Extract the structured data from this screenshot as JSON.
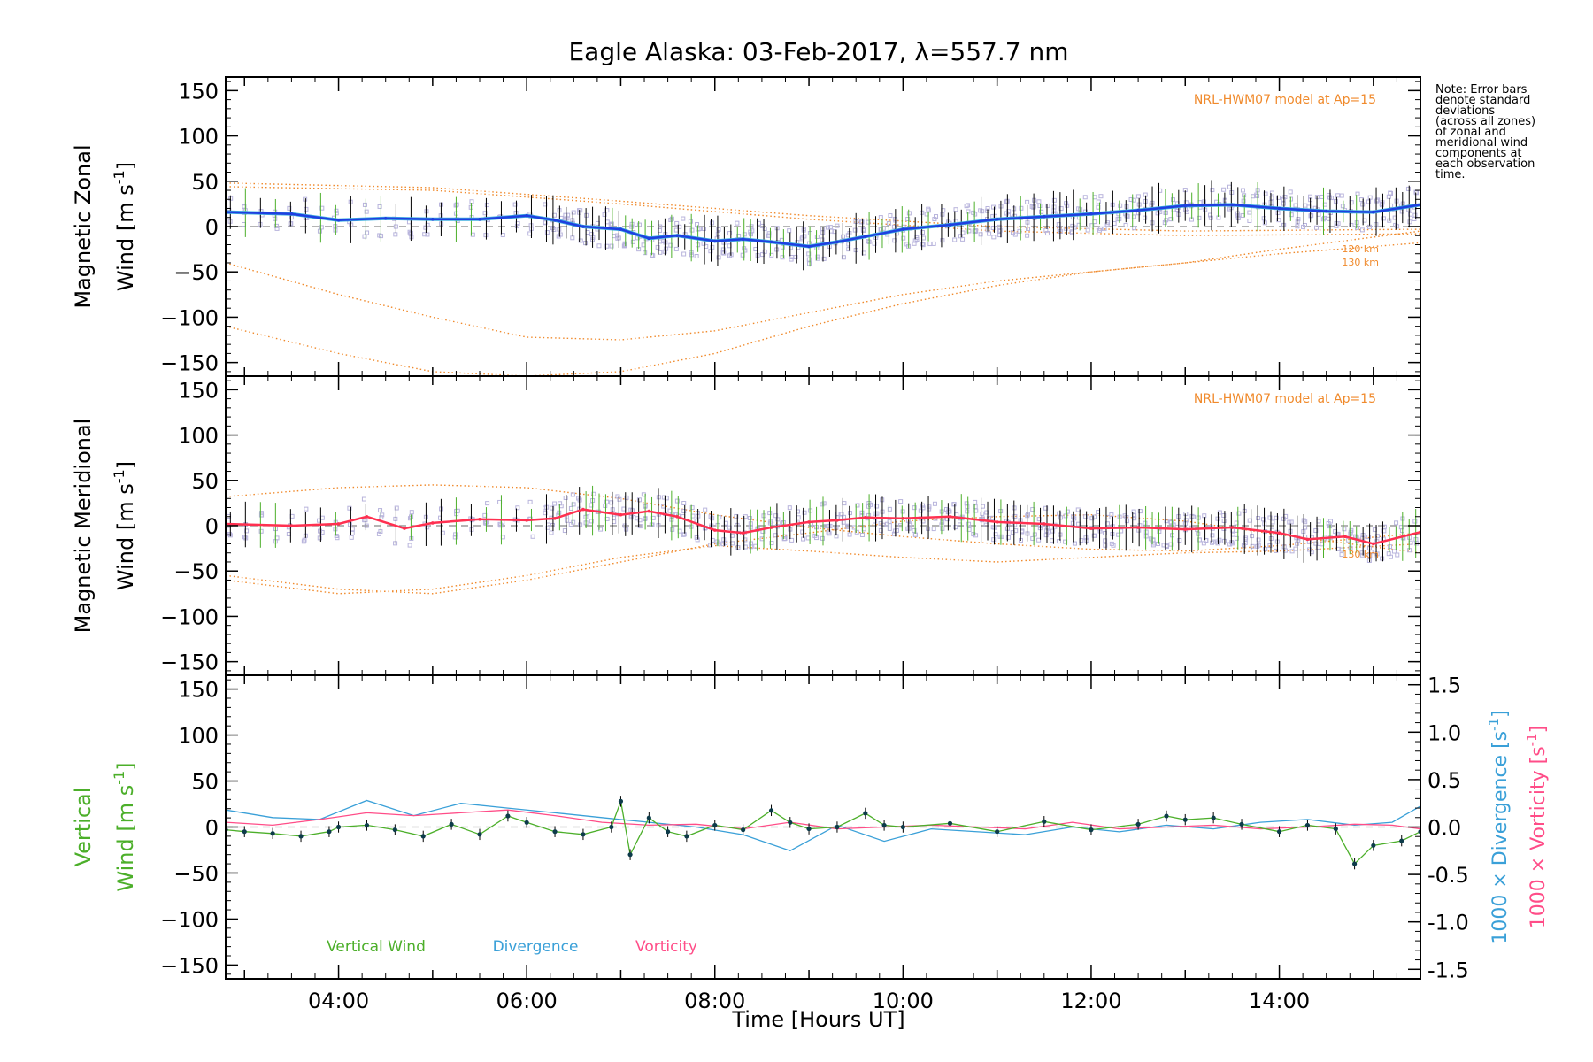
{
  "colors": {
    "zonal": "#1f3fe0",
    "zonal_light": "#40b0e0",
    "meridional": "#ff3050",
    "model": "#f08a2c",
    "vertical": "#4caf2a",
    "divergence": "#3aa0d8",
    "vorticity": "#ff4d88",
    "scatter": "#b8b4dc",
    "errorbar": "#000000"
  },
  "note_lines": [
    "Note: Error bars",
    "denote standard",
    "deviations",
    "(across all zones)",
    "of zonal and",
    "meridional wind",
    "components at",
    "each observation",
    "time."
  ],
  "chart_data": {
    "type": "line",
    "title": "Eagle Alaska: 03-Feb-2017, λ=557.7 nm",
    "xlabel": "Time [Hours UT]",
    "x_ticks": [
      "04:00",
      "06:00",
      "08:00",
      "10:00",
      "12:00",
      "14:00"
    ],
    "x_tick_hours": [
      4,
      6,
      8,
      10,
      12,
      14
    ],
    "xlim_hours": [
      2.8,
      15.5
    ],
    "panels": [
      {
        "name": "zonal",
        "ylabel_line1": "Magnetic Zonal",
        "ylabel_line2": "Wind [m s",
        "ylabel_sup": "-1",
        "ylabel_close": "]",
        "ylim": [
          -165,
          165
        ],
        "y_ticks": [
          150,
          100,
          50,
          0,
          -50,
          -100,
          -150
        ],
        "model_label": "NRL-HWM07 model at Ap=15",
        "model_heights": [
          "120 km",
          "130 km"
        ],
        "series": {
          "hours": [
            2.8,
            3.5,
            4.0,
            4.5,
            5.0,
            5.5,
            6.0,
            6.3,
            6.6,
            7.0,
            7.3,
            7.6,
            8.0,
            8.3,
            8.6,
            9.0,
            9.3,
            9.6,
            10.0,
            10.5,
            11.0,
            11.5,
            12.0,
            12.5,
            13.0,
            13.5,
            14.0,
            14.5,
            15.0,
            15.5
          ],
          "values": [
            16,
            14,
            7,
            9,
            8,
            8,
            12,
            7,
            0,
            -3,
            -13,
            -10,
            -16,
            -14,
            -17,
            -22,
            -17,
            -11,
            -3,
            2,
            8,
            11,
            14,
            18,
            23,
            24,
            20,
            17,
            16,
            24
          ]
        },
        "models": [
          {
            "hours": [
              2.8,
              5.0,
              7.0,
              9.0,
              11.0,
              13.0,
              15.5
            ],
            "values": [
              48,
              43,
              28,
              12,
              0,
              -5,
              -3
            ]
          },
          {
            "hours": [
              2.8,
              5.0,
              7.0,
              9.0,
              11.0,
              13.0,
              15.5
            ],
            "values": [
              44,
              40,
              25,
              8,
              -5,
              -10,
              -8
            ]
          },
          {
            "hours": [
              2.8,
              4.0,
              5.0,
              6.0,
              7.0,
              8.0,
              9.0,
              10.0,
              11.0,
              12.0,
              13.0,
              14.0,
              15.5
            ],
            "values": [
              -40,
              -75,
              -100,
              -122,
              -125,
              -115,
              -95,
              -75,
              -60,
              -50,
              -40,
              -30,
              -18
            ]
          },
          {
            "hours": [
              2.8,
              4.0,
              5.0,
              6.0,
              7.0,
              8.0,
              9.0,
              10.0,
              11.0,
              12.0,
              13.0,
              14.0,
              15.5
            ],
            "values": [
              -110,
              -140,
              -160,
              -165,
              -160,
              -140,
              -110,
              -85,
              -65,
              -50,
              -40,
              -25,
              -5
            ]
          }
        ]
      },
      {
        "name": "meridional",
        "ylabel_line1": "Magnetic Meridional",
        "ylabel_line2": "Wind [m s",
        "ylabel_sup": "-1",
        "ylabel_close": "]",
        "ylim": [
          -165,
          165
        ],
        "y_ticks": [
          150,
          100,
          50,
          0,
          -50,
          -100,
          -150
        ],
        "model_label": "NRL-HWM07 model at Ap=15",
        "model_heights": [
          "130 km"
        ],
        "series": {
          "hours": [
            2.8,
            3.5,
            4.0,
            4.3,
            4.7,
            5.0,
            5.5,
            6.0,
            6.3,
            6.6,
            7.0,
            7.3,
            7.6,
            8.0,
            8.3,
            8.6,
            9.0,
            9.3,
            9.6,
            10.0,
            10.5,
            11.0,
            11.5,
            12.0,
            12.5,
            13.0,
            13.5,
            14.0,
            14.3,
            14.7,
            15.0,
            15.5
          ],
          "values": [
            2,
            0,
            2,
            10,
            -3,
            3,
            7,
            6,
            8,
            18,
            12,
            16,
            10,
            -5,
            -8,
            -2,
            4,
            6,
            9,
            8,
            10,
            4,
            2,
            -3,
            -2,
            -4,
            -2,
            -8,
            -15,
            -12,
            -20,
            -7
          ]
        },
        "models": [
          {
            "hours": [
              2.8,
              4.0,
              5.0,
              6.0,
              7.0,
              8.0,
              9.0,
              10.0,
              11.0,
              12.0,
              13.0,
              14.0,
              15.5
            ],
            "values": [
              32,
              42,
              45,
              42,
              30,
              12,
              -2,
              -12,
              -20,
              -26,
              -28,
              -22,
              -8
            ]
          },
          {
            "hours": [
              2.8,
              4.0,
              5.0,
              6.0,
              7.0,
              8.0,
              9.0,
              10.0,
              11.0,
              12.0,
              13.0,
              14.0,
              15.5
            ],
            "values": [
              -55,
              -70,
              -75,
              -60,
              -40,
              -20,
              -8,
              5,
              10,
              12,
              5,
              -10,
              -30
            ]
          },
          {
            "hours": [
              2.8,
              4.0,
              5.0,
              6.0,
              7.0,
              8.0,
              9.0,
              10.0,
              11.0,
              12.0,
              13.0,
              14.0,
              15.5
            ],
            "values": [
              -60,
              -75,
              -70,
              -55,
              -35,
              -22,
              -28,
              -35,
              -40,
              -35,
              -30,
              -28,
              -20
            ]
          }
        ]
      },
      {
        "name": "vertical",
        "ylabel_line1": "Vertical",
        "ylabel_line2": "Wind [m s",
        "ylabel_sup": "-1",
        "ylabel_close": "]",
        "ylim": [
          -165,
          165
        ],
        "y_ticks": [
          150,
          100,
          50,
          0,
          -50,
          -100,
          -150
        ],
        "right_ylim": [
          -1.6,
          1.6
        ],
        "right_y_ticks": [
          "1.5",
          "1.0",
          "0.5",
          "0.0",
          "-0.5",
          "-1.0",
          "-1.5"
        ],
        "right_y_tick_values": [
          1.5,
          1.0,
          0.5,
          0.0,
          -0.5,
          -1.0,
          -1.5
        ],
        "right_label_div": "1000 × Divergence [s",
        "right_label_vort": "1000 × Vorticity [s",
        "right_label_sup": "-1",
        "right_label_close": "]",
        "legend": [
          "Vertical Wind",
          "Divergence",
          "Vorticity"
        ],
        "series": [
          {
            "name": "Vertical Wind",
            "hours": [
              2.8,
              3.0,
              3.3,
              3.6,
              3.9,
              4.0,
              4.3,
              4.6,
              4.9,
              5.2,
              5.5,
              5.8,
              6.0,
              6.3,
              6.6,
              6.9,
              7.0,
              7.1,
              7.3,
              7.5,
              7.7,
              8.0,
              8.3,
              8.6,
              8.8,
              9.0,
              9.3,
              9.6,
              9.8,
              10.0,
              10.5,
              11.0,
              11.5,
              12.0,
              12.5,
              12.8,
              13.0,
              13.3,
              13.6,
              14.0,
              14.3,
              14.6,
              14.8,
              15.0,
              15.3,
              15.5
            ],
            "values": [
              -3,
              -5,
              -7,
              -10,
              -5,
              0,
              2,
              -3,
              -10,
              3,
              -8,
              12,
              5,
              -5,
              -8,
              0,
              28,
              -30,
              10,
              -5,
              -10,
              2,
              -3,
              18,
              5,
              -2,
              0,
              15,
              2,
              0,
              4,
              -5,
              6,
              -3,
              3,
              12,
              8,
              10,
              3,
              -5,
              2,
              -2,
              -40,
              -20,
              -15,
              -5
            ]
          },
          {
            "name": "Divergence",
            "hours": [
              2.8,
              3.3,
              3.8,
              4.3,
              4.8,
              5.3,
              5.8,
              6.3,
              6.8,
              7.3,
              7.8,
              8.3,
              8.8,
              9.3,
              9.8,
              10.3,
              10.8,
              11.3,
              11.8,
              12.3,
              12.8,
              13.3,
              13.8,
              14.3,
              14.8,
              15.2,
              15.5
            ],
            "values": [
              0.18,
              0.1,
              0.08,
              0.28,
              0.12,
              0.25,
              0.2,
              0.15,
              0.1,
              0.05,
              0.0,
              -0.08,
              -0.25,
              0.02,
              -0.15,
              -0.02,
              -0.05,
              -0.08,
              0.0,
              -0.05,
              0.02,
              -0.02,
              0.05,
              0.08,
              0.02,
              0.05,
              0.22
            ]
          },
          {
            "name": "Vorticity",
            "hours": [
              2.8,
              3.3,
              3.8,
              4.3,
              4.8,
              5.3,
              5.8,
              6.3,
              6.8,
              7.3,
              7.8,
              8.3,
              8.8,
              9.3,
              9.8,
              10.3,
              10.8,
              11.3,
              11.8,
              12.3,
              12.8,
              13.3,
              13.8,
              14.3,
              14.8,
              15.2,
              15.5
            ],
            "values": [
              0.05,
              0.02,
              0.08,
              0.15,
              0.12,
              0.15,
              0.18,
              0.12,
              0.05,
              0.02,
              0.03,
              -0.02,
              0.05,
              -0.02,
              0.0,
              0.02,
              0.0,
              -0.02,
              0.05,
              -0.02,
              0.0,
              0.02,
              -0.02,
              0.0,
              0.03,
              0.02,
              -0.02
            ]
          }
        ]
      }
    ]
  }
}
